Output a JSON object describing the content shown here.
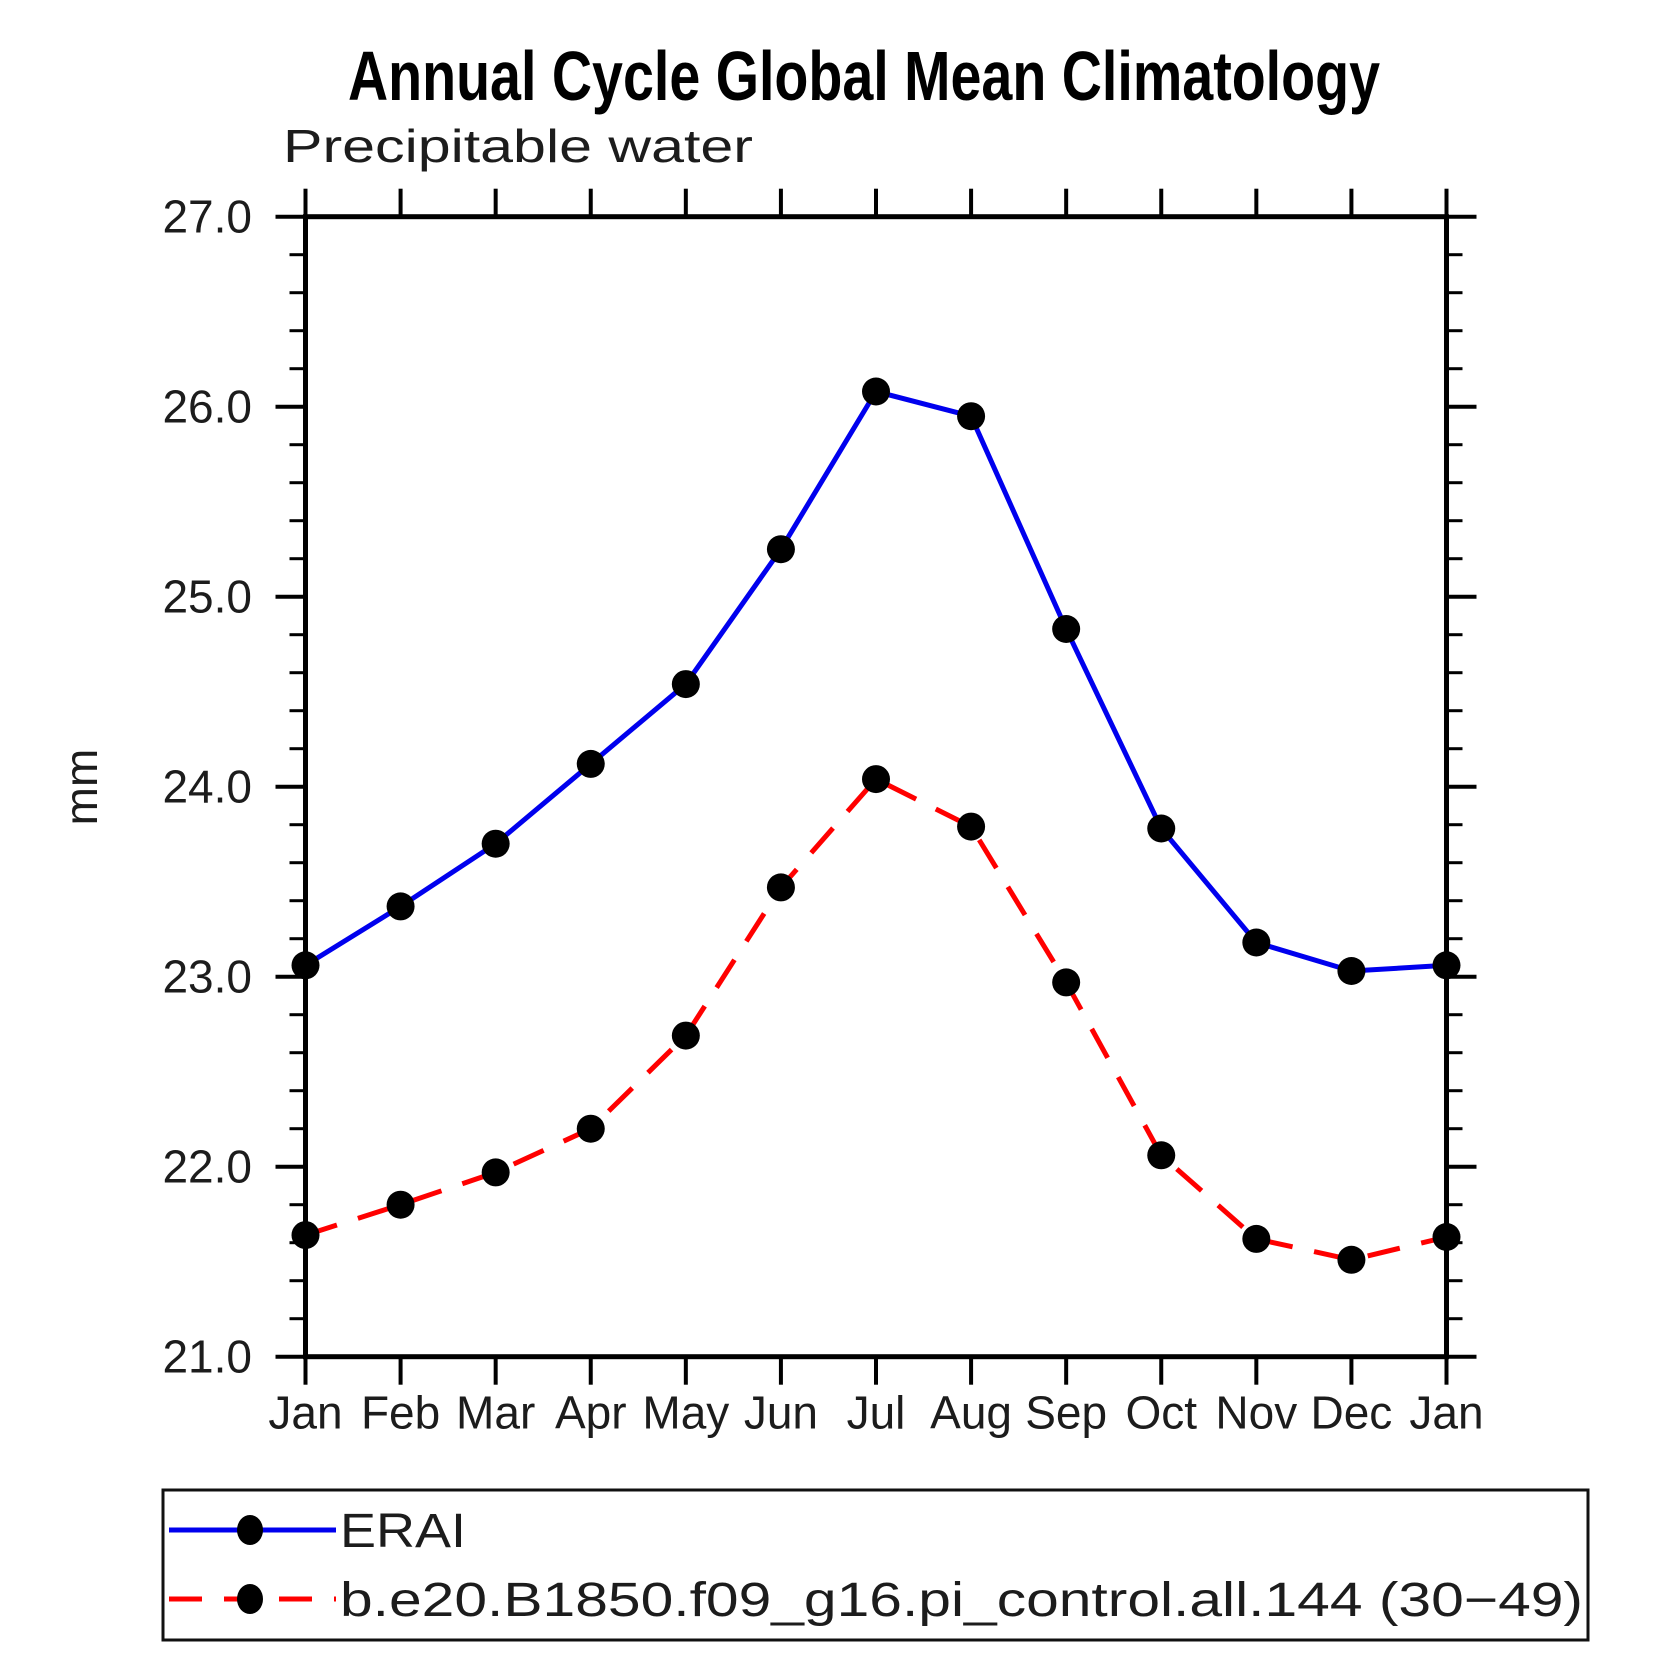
{
  "chart_data": {
    "type": "line",
    "title": "Annual Cycle Global Mean Climatology",
    "subtitle": "Precipitable water",
    "ylabel": "mm",
    "xlabel": "",
    "categories": [
      "Jan",
      "Feb",
      "Mar",
      "Apr",
      "May",
      "Jun",
      "Jul",
      "Aug",
      "Sep",
      "Oct",
      "Nov",
      "Dec",
      "Jan"
    ],
    "ylim": [
      21.0,
      27.0
    ],
    "y_major_tick_step": 1.0,
    "y_minor_tick_step": 0.2,
    "y_tick_labels": [
      "21.0",
      "22.0",
      "23.0",
      "24.0",
      "25.0",
      "26.0",
      "27.0"
    ],
    "grid": false,
    "legend_position": "bottom-left-box",
    "series": [
      {
        "name": "ERAI",
        "color": "#0000ee",
        "style": "solid",
        "marker": "circle",
        "marker_color": "#000000",
        "values": [
          23.06,
          23.37,
          23.7,
          24.12,
          24.54,
          25.25,
          26.08,
          25.95,
          24.83,
          23.78,
          23.18,
          23.03,
          23.06
        ]
      },
      {
        "name": "b.e20.B1850.f09_g16.pi_control.all.144 (30−49)",
        "color": "#ff0000",
        "style": "dashed",
        "marker": "circle",
        "marker_color": "#000000",
        "values": [
          21.64,
          21.8,
          21.97,
          22.2,
          22.69,
          23.47,
          24.04,
          23.79,
          22.97,
          22.06,
          21.62,
          21.51,
          21.63
        ]
      }
    ]
  },
  "colors": {
    "background": "#ffffff",
    "axis": "#000000",
    "series_erai": "#0000ee",
    "series_model": "#ff0000",
    "marker": "#000000"
  }
}
